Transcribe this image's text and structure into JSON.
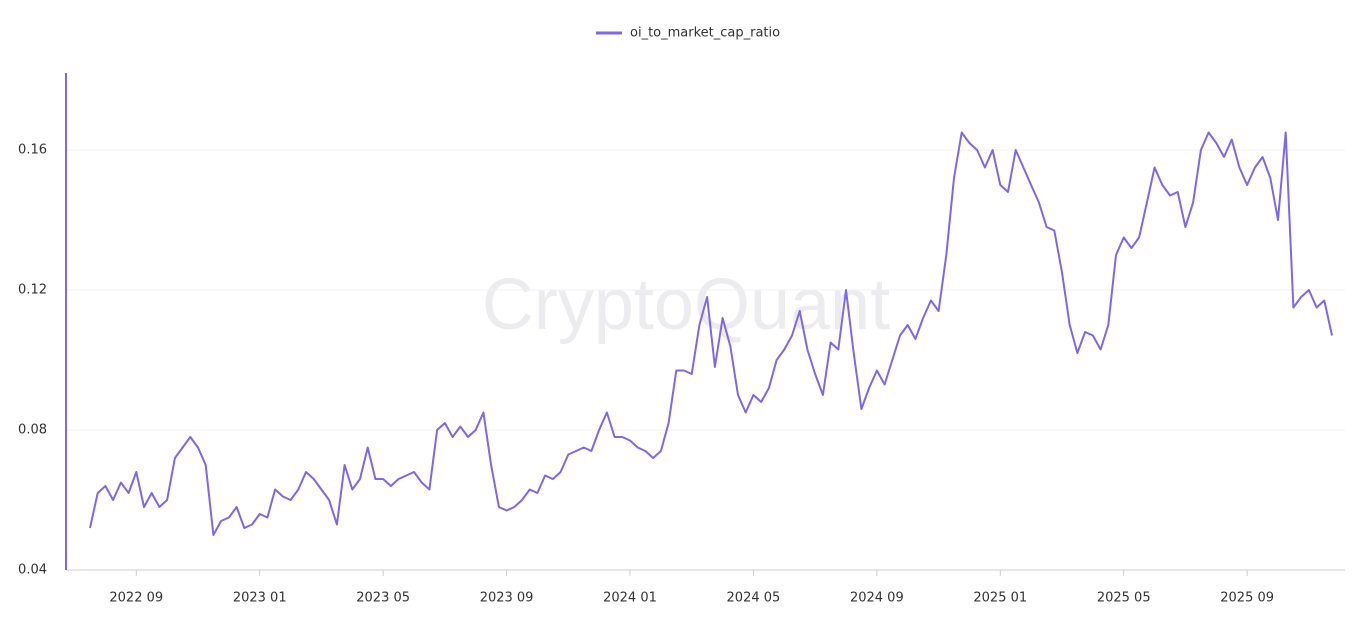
{
  "chart_data": {
    "type": "line",
    "watermark": "CryptoQuant",
    "categories": [
      null,
      null,
      null,
      null,
      null,
      null,
      "2022 09",
      null,
      null,
      null,
      null,
      null,
      null,
      null,
      null,
      null,
      null,
      null,
      null,
      null,
      null,
      null,
      "2023 01",
      null,
      null,
      null,
      null,
      null,
      null,
      null,
      null,
      null,
      null,
      null,
      null,
      null,
      null,
      null,
      "2023 05",
      null,
      null,
      null,
      null,
      null,
      null,
      null,
      null,
      null,
      null,
      null,
      null,
      null,
      null,
      null,
      "2023 09",
      null,
      null,
      null,
      null,
      null,
      null,
      null,
      null,
      null,
      null,
      null,
      null,
      null,
      null,
      null,
      "2024 01",
      null,
      null,
      null,
      null,
      null,
      null,
      null,
      null,
      null,
      null,
      null,
      null,
      null,
      null,
      null,
      "2024 05",
      null,
      null,
      null,
      null,
      null,
      null,
      null,
      null,
      null,
      null,
      null,
      null,
      null,
      null,
      null,
      "2024 09",
      null,
      null,
      null,
      null,
      null,
      null,
      null,
      null,
      null,
      null,
      null,
      null,
      null,
      null,
      null,
      "2025 01",
      null,
      null,
      null,
      null,
      null,
      null,
      null,
      null,
      null,
      null,
      null,
      null,
      null,
      null,
      null,
      "2025 05",
      null,
      null,
      null,
      null,
      null,
      null,
      null,
      null,
      null,
      null,
      null,
      null,
      null,
      null,
      null,
      "2025 09",
      null,
      null,
      null,
      null,
      null,
      null,
      null,
      null,
      null,
      null,
      null
    ],
    "series": [
      {
        "name": "oi_to_market_cap_ratio",
        "color": "#7b68ee",
        "values": [
          0.052,
          0.062,
          0.064,
          0.06,
          0.065,
          0.062,
          0.068,
          0.058,
          0.062,
          0.058,
          0.06,
          0.072,
          0.075,
          0.078,
          0.075,
          0.07,
          0.05,
          0.054,
          0.055,
          0.058,
          0.052,
          0.053,
          0.056,
          0.055,
          0.063,
          0.061,
          0.06,
          0.063,
          0.068,
          0.066,
          0.063,
          0.06,
          0.053,
          0.07,
          0.063,
          0.066,
          0.075,
          0.066,
          0.066,
          0.064,
          0.066,
          0.067,
          0.068,
          0.065,
          0.063,
          0.08,
          0.082,
          0.078,
          0.081,
          0.078,
          0.08,
          0.085,
          0.07,
          0.058,
          0.057,
          0.058,
          0.06,
          0.063,
          0.062,
          0.067,
          0.066,
          0.068,
          0.073,
          0.074,
          0.075,
          0.074,
          0.08,
          0.085,
          0.078,
          0.078,
          0.077,
          0.075,
          0.074,
          0.072,
          0.074,
          0.082,
          0.097,
          0.097,
          0.096,
          0.11,
          0.118,
          0.098,
          0.112,
          0.104,
          0.09,
          0.085,
          0.09,
          0.088,
          0.092,
          0.1,
          0.103,
          0.107,
          0.114,
          0.103,
          0.096,
          0.09,
          0.105,
          0.103,
          0.12,
          0.102,
          0.086,
          0.092,
          0.097,
          0.093,
          0.1,
          0.107,
          0.11,
          0.106,
          0.112,
          0.117,
          0.114,
          0.13,
          0.152,
          0.165,
          0.162,
          0.16,
          0.155,
          0.16,
          0.15,
          0.148,
          0.16,
          0.155,
          0.15,
          0.145,
          0.138,
          0.137,
          0.125,
          0.11,
          0.102,
          0.108,
          0.107,
          0.103,
          0.11,
          0.13,
          0.135,
          0.132,
          0.135,
          0.145,
          0.155,
          0.15,
          0.147,
          0.148,
          0.138,
          0.145,
          0.16,
          0.165,
          0.162,
          0.158,
          0.163,
          0.155,
          0.15,
          0.155,
          0.158,
          0.152,
          0.14,
          0.165,
          0.115,
          0.118,
          0.12,
          0.115,
          0.117,
          0.107
        ]
      }
    ],
    "ylim": [
      0.04,
      0.182
    ],
    "yticks": [
      0.04,
      0.08,
      0.12,
      0.16
    ],
    "grid": true
  }
}
